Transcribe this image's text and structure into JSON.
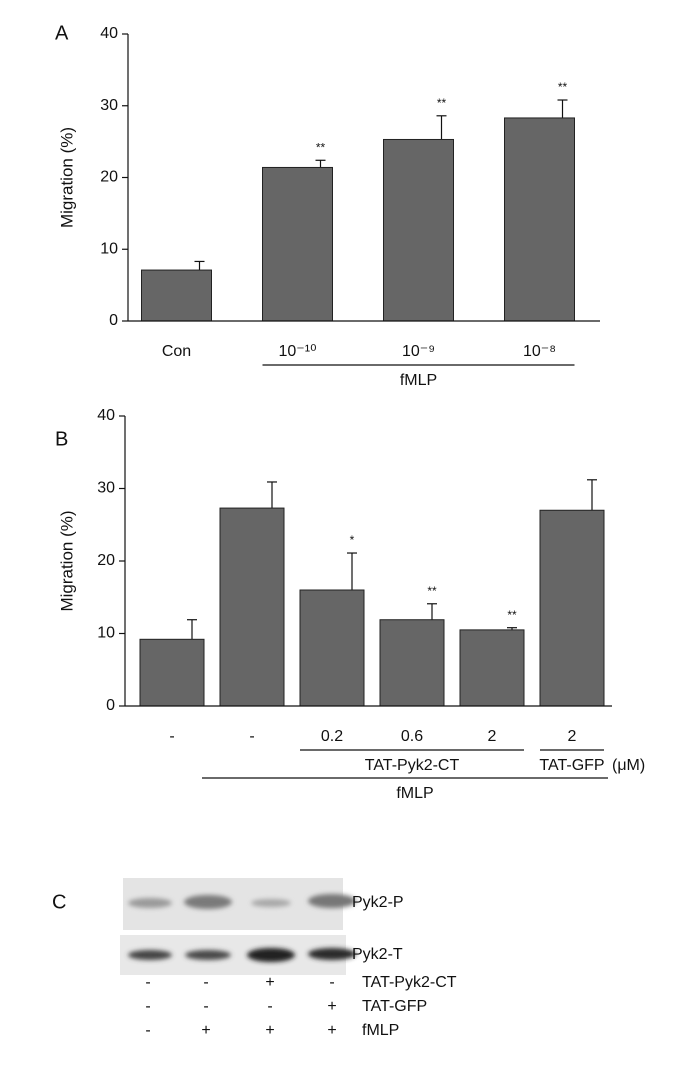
{
  "chart_data": [
    {
      "type": "bar",
      "panel": "A",
      "ylabel": "Migration (%)",
      "categories": [
        "Con",
        "10⁻¹⁰",
        "10⁻⁹",
        "10⁻⁸"
      ],
      "values": [
        7.1,
        21.4,
        25.3,
        28.3
      ],
      "errors": [
        1.2,
        1.0,
        3.3,
        2.5
      ],
      "significance": [
        null,
        "**",
        "**",
        "**"
      ],
      "color": "#666666",
      "ylim": [
        0,
        40
      ],
      "yticks": [
        0,
        10,
        20,
        30,
        40
      ],
      "groups": [
        {
          "label": "fMLP",
          "start": 1,
          "end": 3
        }
      ]
    },
    {
      "type": "bar",
      "panel": "B",
      "ylabel": "Migration (%)",
      "categories": [
        "-",
        "-",
        "0.2",
        "0.6",
        "2",
        "2"
      ],
      "values": [
        9.2,
        27.3,
        16.0,
        11.9,
        10.5,
        27.0
      ],
      "errors": [
        2.7,
        3.6,
        5.1,
        2.2,
        0.3,
        4.2
      ],
      "significance": [
        null,
        null,
        "*",
        "**",
        "**",
        null
      ],
      "color": "#666666",
      "ylim": [
        0,
        40
      ],
      "yticks": [
        0,
        10,
        20,
        30,
        40
      ],
      "groups": [
        {
          "label": "TAT-Pyk2-CT",
          "start": 2,
          "end": 4
        },
        {
          "label": "TAT-GFP",
          "start": 5,
          "end": 5
        },
        {
          "label": "fMLP",
          "start": 1,
          "end": 5
        }
      ],
      "unit_label": "(μM)"
    }
  ],
  "blot": {
    "panel": "C",
    "bands": [
      "Pyk2-P",
      "Pyk2-T"
    ],
    "rows": [
      {
        "label": "TAT-Pyk2-CT",
        "signs": [
          "-",
          "-",
          "+",
          "-"
        ]
      },
      {
        "label": "TAT-GFP",
        "signs": [
          "-",
          "-",
          "-",
          "+"
        ]
      },
      {
        "label": "fMLP",
        "signs": [
          "-",
          "+",
          "+",
          "+"
        ]
      }
    ]
  }
}
